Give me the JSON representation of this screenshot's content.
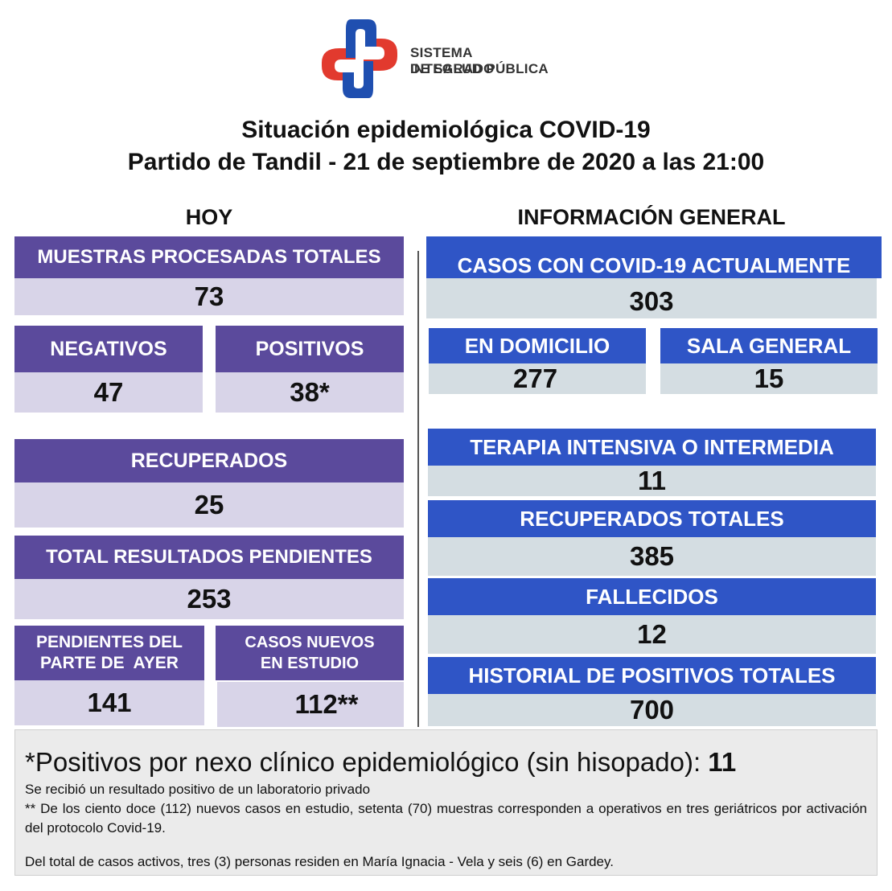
{
  "logo": {
    "line1": "SISTEMA INTEGRADO",
    "line2": "DE SALUD PÚBLICA",
    "colors": {
      "blue": "#1f4fb0",
      "red": "#e23a2e"
    }
  },
  "title": {
    "line1": "Situación epidemiológica COVID-19",
    "line2": "Partido de Tandil - 21 de septiembre de 2020 a las 21:00"
  },
  "hoy": {
    "heading": "HOY",
    "muestras": {
      "label": "MUESTRAS PROCESADAS TOTALES",
      "value": "73"
    },
    "negativos": {
      "label": "NEGATIVOS",
      "value": "47"
    },
    "positivos": {
      "label": "POSITIVOS",
      "value": "38*"
    },
    "recuperados": {
      "label": "RECUPERADOS",
      "value": "25"
    },
    "pendientes": {
      "label": "TOTAL RESULTADOS PENDIENTES",
      "value": "253"
    },
    "pend_ayer": {
      "label_line1": "PENDIENTES DEL",
      "label_line2": "PARTE DE  AYER",
      "value": "141"
    },
    "nuevos": {
      "label_line1": "CASOS NUEVOS",
      "label_line2": "EN ESTUDIO",
      "value": "112**"
    }
  },
  "general": {
    "heading": "INFORMACIÓN GENERAL",
    "activos": {
      "label": "CASOS CON COVID-19 ACTUALMENTE",
      "value": "303"
    },
    "domicilio": {
      "label": "EN DOMICILIO",
      "value": "277"
    },
    "sala": {
      "label": "SALA GENERAL",
      "value": "15"
    },
    "terapia": {
      "label": "TERAPIA INTENSIVA O INTERMEDIA",
      "value": "11"
    },
    "recuperados_totales": {
      "label": "RECUPERADOS TOTALES",
      "value": "385"
    },
    "fallecidos": {
      "label": "FALLECIDOS",
      "value": "12"
    },
    "historial": {
      "label": "HISTORIAL DE POSITIVOS TOTALES",
      "value": "700"
    }
  },
  "notes": {
    "nexo_text": "*Positivos por nexo clínico epidemiológico (sin hisopado): ",
    "nexo_value": "11",
    "line1": "Se recibió un resultado positivo de un laboratorio privado",
    "line2": "** De los ciento doce (112) nuevos casos en estudio, setenta (70) muestras corresponden a operativos en tres geriátricos por activación del protocolo Covid-19.",
    "line3": "Del total de casos activos, tres (3) personas residen en María Ignacia - Vela y seis (6) en Gardey."
  },
  "colors": {
    "purple": "#5b4a9c",
    "lavender": "#d8d4e8",
    "blue": "#2f55c6",
    "grey": "#d4dde2",
    "notes_bg": "#ebebeb"
  }
}
